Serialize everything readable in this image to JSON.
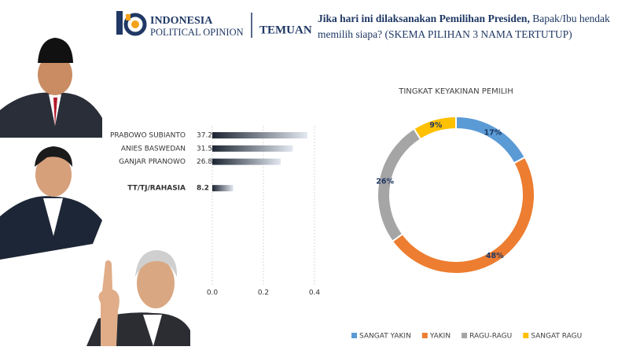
{
  "header": {
    "logo_line1": "INDONESIA",
    "logo_line2": "POLITICAL OPINION",
    "section": "TEMUAN",
    "question_bold": "Jika hari ini dilaksanakan Pemilihan Presiden,",
    "question_rest": "Bapak/Ibu hendak memilih siapa? (SKEMA PILIHAN 3 NAMA TERTUTUP)"
  },
  "chart_data": [
    {
      "type": "bar",
      "orientation": "horizontal",
      "categories": [
        "PRABOWO SUBIANTO",
        "ANIES BASWEDAN",
        "GANJAR PRANOWO",
        null,
        "TT/TJ/RAHASIA"
      ],
      "values": [
        0.372,
        0.315,
        0.268,
        null,
        0.082
      ],
      "value_labels": [
        "37.2",
        "31.5",
        "26.8",
        null,
        "8.2"
      ],
      "xlim": [
        0,
        0.4
      ],
      "xticks": [
        {
          "value": 0,
          "label": "0.0"
        },
        0.2,
        0.4
      ],
      "grid": true
    },
    {
      "type": "donut",
      "title": "TINGKAT KEYAKINAN PEMILIH",
      "categories": [
        "SANGAT YAKIN",
        "YAKIN",
        "RAGU-RAGU",
        "SANGAT RAGU"
      ],
      "values": [
        17,
        48,
        26,
        9
      ],
      "value_labels": [
        "17%",
        "48%",
        "26%",
        "9%"
      ],
      "colors": [
        "#5b9bd5",
        "#ed7d31",
        "#a5a5a5",
        "#ffc000"
      ],
      "legend": "bottom"
    }
  ]
}
